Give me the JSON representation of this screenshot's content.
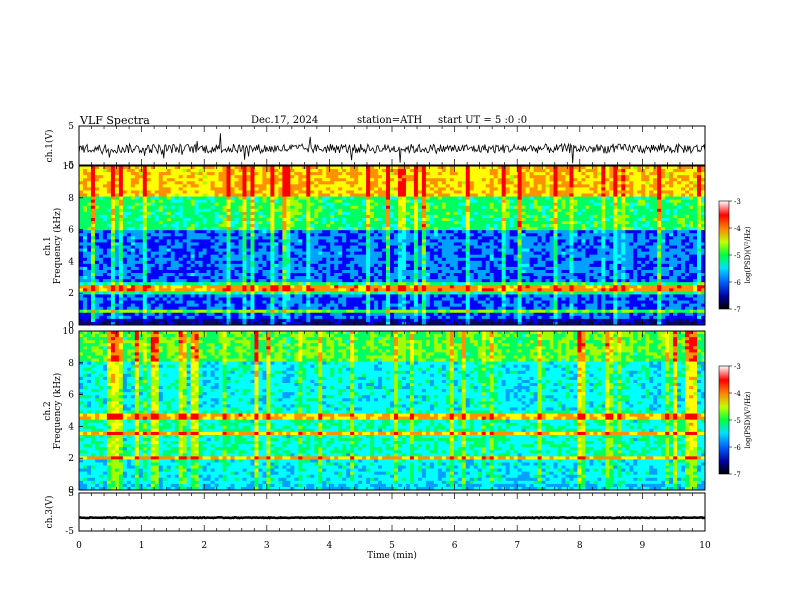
{
  "header": {
    "title": "VLF  Spectra",
    "date": "Dec.17, 2024",
    "station": "station=ATH",
    "start_ut": "start  UT  =    5  :0  :0"
  },
  "chart_data": [
    {
      "type": "line",
      "panel": "ch1-waveform",
      "ylabel": "ch.1(V)",
      "y_ticks": [
        "5",
        "-5"
      ],
      "ylim": [
        -5,
        5
      ],
      "xlim": [
        0,
        10
      ],
      "series": [
        {
          "color": "#000000",
          "baseline": -0.8,
          "noise_amplitude": 1.2
        }
      ]
    },
    {
      "type": "heatmap",
      "panel": "ch1-spectrogram",
      "ylabel": "ch.1\nFrequency (kHz)",
      "y_ticks": [
        "10",
        "8",
        "6",
        "4",
        "2",
        "0"
      ],
      "ylim": [
        0,
        10
      ],
      "xlim": [
        0,
        10
      ],
      "colorbar": {
        "label": "log(PSD)(V²/Hz)",
        "ticks": [
          "-3",
          "-4",
          "-5",
          "-6",
          "-7"
        ],
        "range": [
          -7,
          -3
        ]
      },
      "dominant_lines_khz": [
        0.9,
        2.2,
        2.4
      ]
    },
    {
      "type": "heatmap",
      "panel": "ch2-spectrogram",
      "ylabel": "ch.2\nFrequency (kHz)",
      "y_ticks": [
        "10",
        "8",
        "6",
        "4",
        "2",
        "0"
      ],
      "ylim": [
        0,
        10
      ],
      "xlim": [
        0,
        10
      ],
      "colorbar": {
        "label": "log(PSD)(V²/Hz)",
        "ticks": [
          "-3",
          "-4",
          "-5",
          "-6",
          "-7"
        ],
        "range": [
          -7,
          -3
        ]
      },
      "dominant_lines_khz": [
        2.0,
        3.5,
        4.6
      ]
    },
    {
      "type": "line",
      "panel": "ch3-waveform",
      "ylabel": "ch.3(V)",
      "y_ticks": [
        "5",
        "-5"
      ],
      "ylim": [
        -5,
        5
      ],
      "xlim": [
        0,
        10
      ],
      "series": [
        {
          "color": "#000000",
          "baseline": -1.5,
          "noise_amplitude": 0.1
        }
      ]
    }
  ],
  "x_axis": {
    "xlabel": "Time  (min)",
    "ticks": [
      "0",
      "1",
      "2",
      "3",
      "4",
      "5",
      "6",
      "7",
      "8",
      "9",
      "10"
    ],
    "range": [
      0,
      10
    ]
  },
  "colors": {
    "colormap": [
      "#08086e",
      "#0000ff",
      "#00a0ff",
      "#00ffff",
      "#00ff60",
      "#a0ff00",
      "#ffff00",
      "#ff9000",
      "#ff0000",
      "#ffffff"
    ]
  }
}
